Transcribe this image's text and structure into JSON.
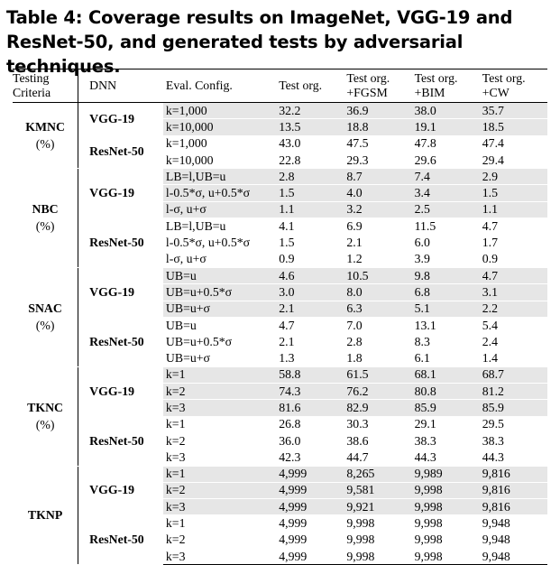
{
  "caption": "Table 4: Coverage results on ImageNet, VGG-19 and ResNet-50, and generated tests by adversarial techniques.",
  "headers": {
    "criteria": [
      "Testing",
      "Criteria"
    ],
    "dnn": "DNN",
    "config": "Eval. Config.",
    "test_org": "Test org.",
    "fgsm": [
      "Test org.",
      "+FGSM"
    ],
    "bim": [
      "Test org.",
      "+BIM"
    ],
    "cw": [
      "Test org.",
      "+CW"
    ]
  },
  "groups": [
    {
      "criteria": "KMNC",
      "unit": "(%)",
      "models": [
        {
          "dnn": "VGG-19",
          "rows": [
            {
              "config": "k=1,000",
              "values": [
                "32.2",
                "36.9",
                "38.0",
                "35.7"
              ]
            },
            {
              "config": "k=10,000",
              "values": [
                "13.5",
                "18.8",
                "19.1",
                "18.5"
              ]
            }
          ]
        },
        {
          "dnn": "ResNet-50",
          "rows": [
            {
              "config": "k=1,000",
              "values": [
                "43.0",
                "47.5",
                "47.8",
                "47.4"
              ]
            },
            {
              "config": "k=10,000",
              "values": [
                "22.8",
                "29.3",
                "29.6",
                "29.4"
              ]
            }
          ]
        }
      ]
    },
    {
      "criteria": "NBC",
      "unit": "(%)",
      "models": [
        {
          "dnn": "VGG-19",
          "rows": [
            {
              "config": "LB=l,UB=u",
              "values": [
                "2.8",
                "8.7",
                "7.4",
                "2.9"
              ]
            },
            {
              "config": "l-0.5*σ, u+0.5*σ",
              "values": [
                "1.5",
                "4.0",
                "3.4",
                "1.5"
              ]
            },
            {
              "config": "l-σ, u+σ",
              "values": [
                "1.1",
                "3.2",
                "2.5",
                "1.1"
              ]
            }
          ]
        },
        {
          "dnn": "ResNet-50",
          "rows": [
            {
              "config": "LB=l,UB=u",
              "values": [
                "4.1",
                "6.9",
                "11.5",
                "4.7"
              ]
            },
            {
              "config": "l-0.5*σ, u+0.5*σ",
              "values": [
                "1.5",
                "2.1",
                "6.0",
                "1.7"
              ]
            },
            {
              "config": "l-σ, u+σ",
              "values": [
                "0.9",
                "1.2",
                "3.9",
                "0.9"
              ]
            }
          ]
        }
      ]
    },
    {
      "criteria": "SNAC",
      "unit": "(%)",
      "models": [
        {
          "dnn": "VGG-19",
          "rows": [
            {
              "config": "UB=u",
              "values": [
                "4.6",
                "10.5",
                "9.8",
                "4.7"
              ]
            },
            {
              "config": "UB=u+0.5*σ",
              "values": [
                "3.0",
                "8.0",
                "6.8",
                "3.1"
              ]
            },
            {
              "config": "UB=u+σ",
              "values": [
                "2.1",
                "6.3",
                "5.1",
                "2.2"
              ]
            }
          ]
        },
        {
          "dnn": "ResNet-50",
          "rows": [
            {
              "config": "UB=u",
              "values": [
                "4.7",
                "7.0",
                "13.1",
                "5.4"
              ]
            },
            {
              "config": "UB=u+0.5*σ",
              "values": [
                "2.1",
                "2.8",
                "8.3",
                "2.4"
              ]
            },
            {
              "config": "UB=u+σ",
              "values": [
                "1.3",
                "1.8",
                "6.1",
                "1.4"
              ]
            }
          ]
        }
      ]
    },
    {
      "criteria": "TKNC",
      "unit": "(%)",
      "models": [
        {
          "dnn": "VGG-19",
          "rows": [
            {
              "config": "k=1",
              "values": [
                "58.8",
                "61.5",
                "68.1",
                "68.7"
              ]
            },
            {
              "config": "k=2",
              "values": [
                "74.3",
                "76.2",
                "80.8",
                "81.2"
              ]
            },
            {
              "config": "k=3",
              "values": [
                "81.6",
                "82.9",
                "85.9",
                "85.9"
              ]
            }
          ]
        },
        {
          "dnn": "ResNet-50",
          "rows": [
            {
              "config": "k=1",
              "values": [
                "26.8",
                "30.3",
                "29.1",
                "29.5"
              ]
            },
            {
              "config": "k=2",
              "values": [
                "36.0",
                "38.6",
                "38.3",
                "38.3"
              ]
            },
            {
              "config": "k=3",
              "values": [
                "42.3",
                "44.7",
                "44.3",
                "44.3"
              ]
            }
          ]
        }
      ]
    },
    {
      "criteria": "TKNP",
      "unit": "",
      "models": [
        {
          "dnn": "VGG-19",
          "rows": [
            {
              "config": "k=1",
              "values": [
                "4,999",
                "8,265",
                "9,989",
                "9,816"
              ]
            },
            {
              "config": "k=2",
              "values": [
                "4,999",
                "9,581",
                "9,998",
                "9,816"
              ]
            },
            {
              "config": "k=3",
              "values": [
                "4,999",
                "9,921",
                "9,998",
                "9,816"
              ]
            }
          ]
        },
        {
          "dnn": "ResNet-50",
          "rows": [
            {
              "config": "k=1",
              "values": [
                "4,999",
                "9,998",
                "9,998",
                "9,948"
              ]
            },
            {
              "config": "k=2",
              "values": [
                "4,999",
                "9,998",
                "9,998",
                "9,948"
              ]
            },
            {
              "config": "k=3",
              "values": [
                "4,999",
                "9,998",
                "9,998",
                "9,948"
              ]
            }
          ]
        }
      ]
    }
  ]
}
